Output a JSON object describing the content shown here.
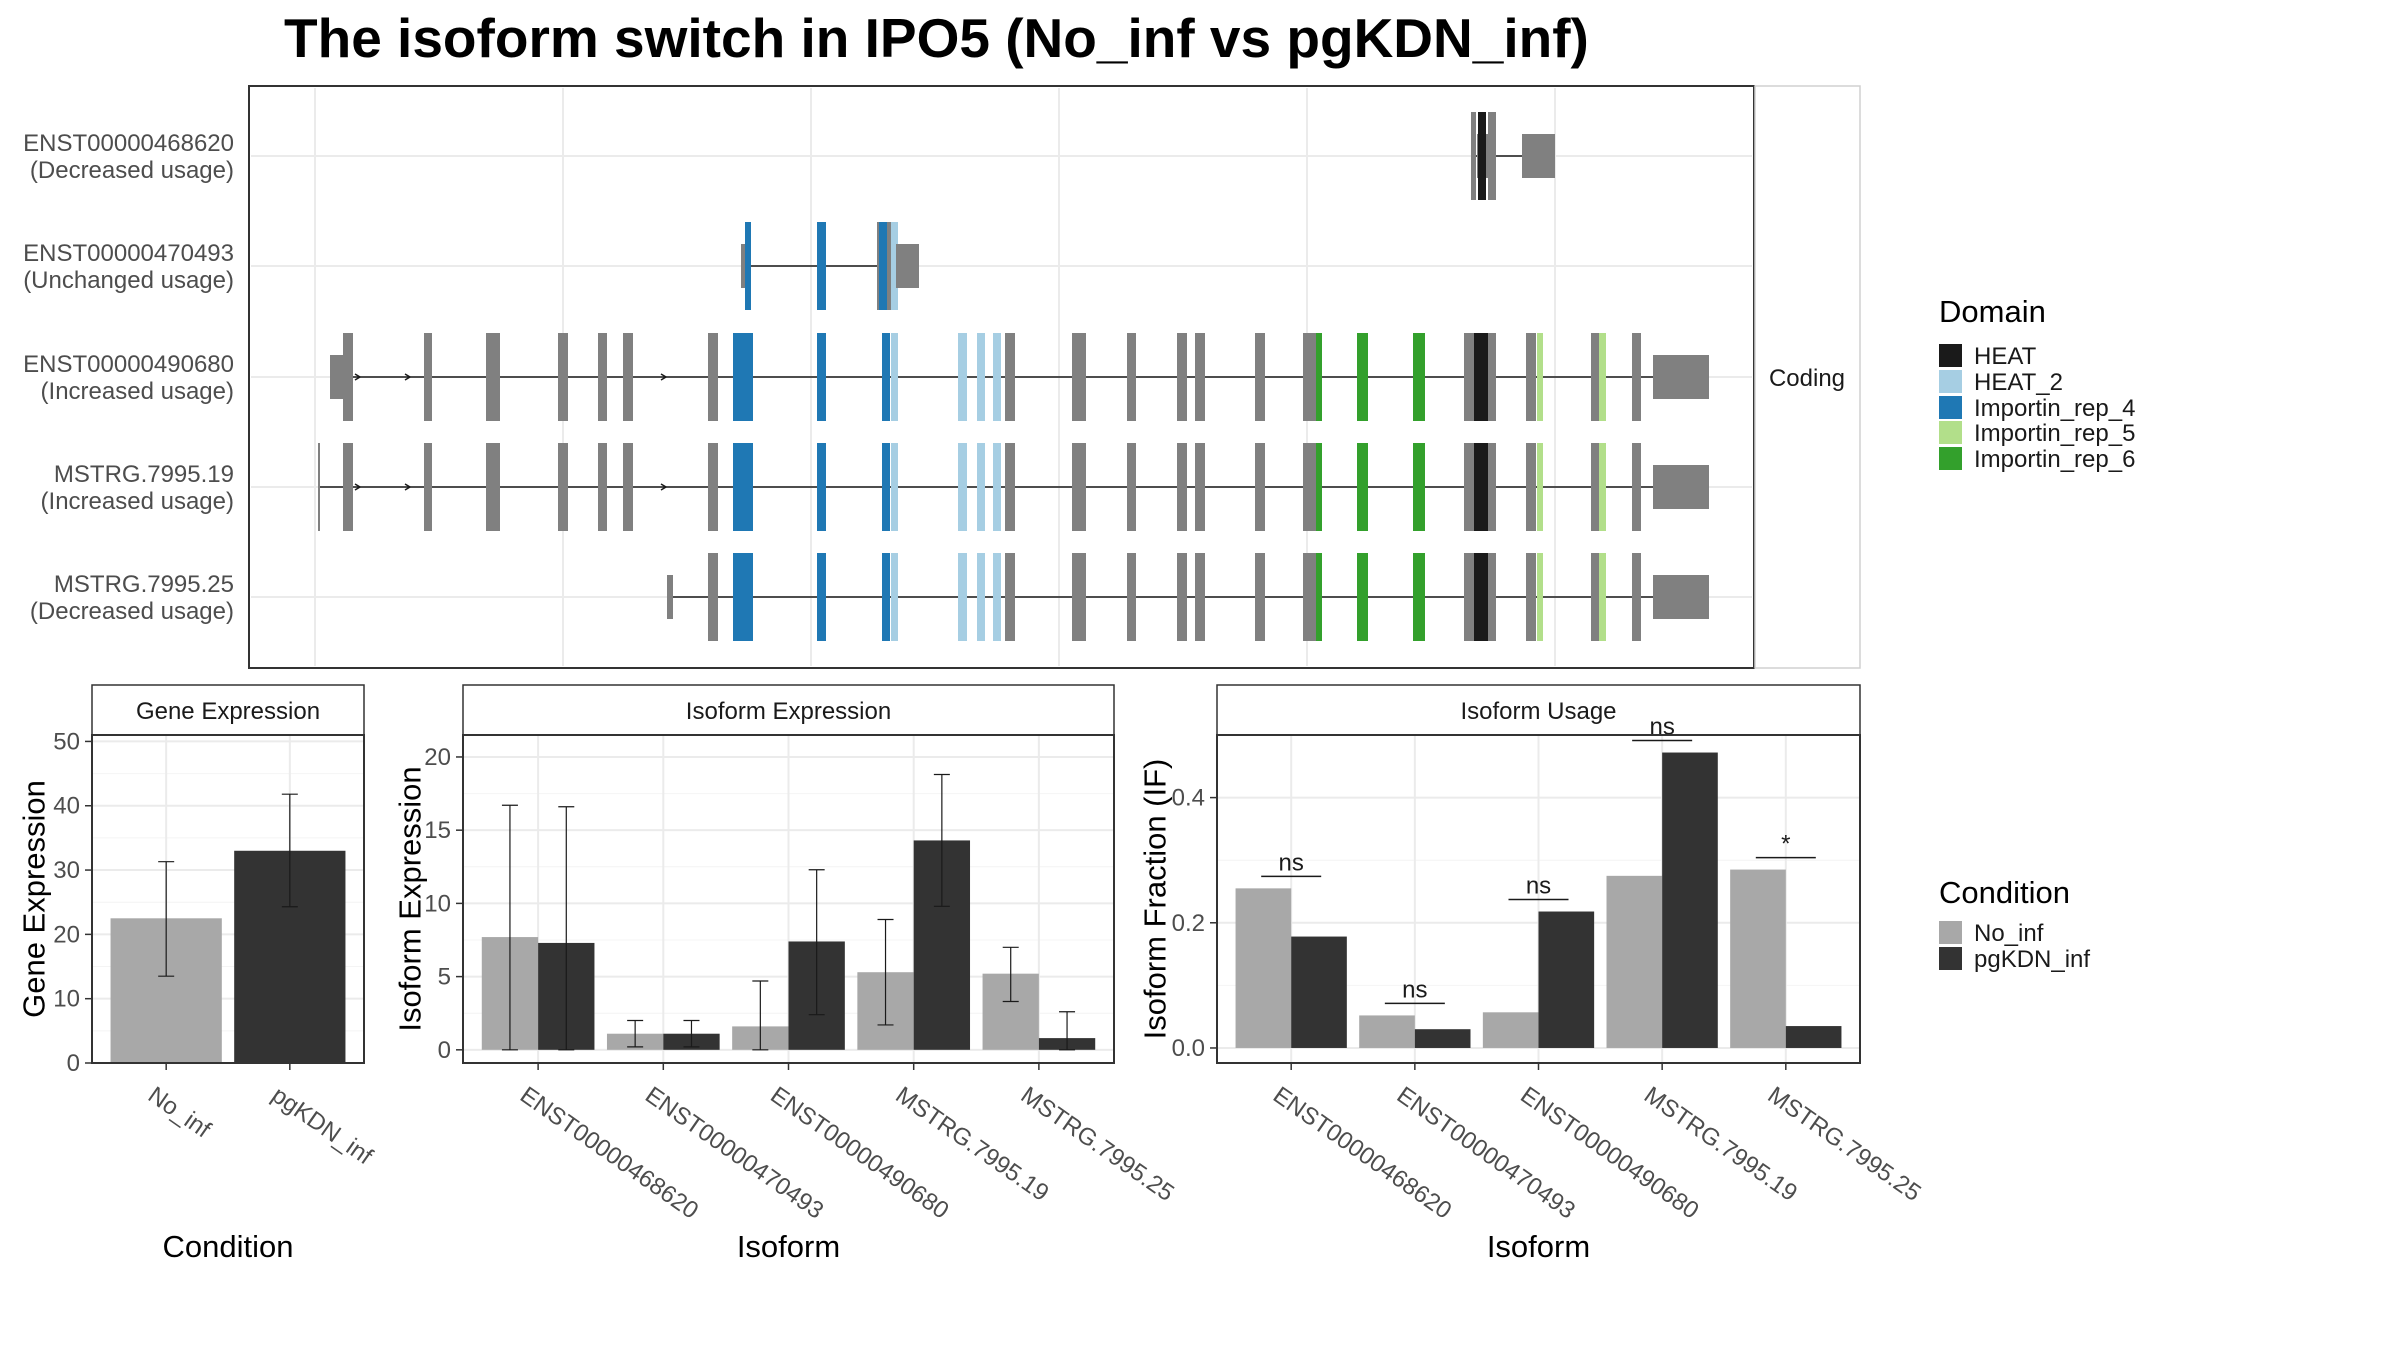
{
  "title": "The isoform switch in IPO5 (No_inf vs pgKDN_inf)",
  "structure": {
    "strip_label": "Coding",
    "isoforms": [
      {
        "id": "ENST00000468620",
        "usage": "(Decreased usage)"
      },
      {
        "id": "ENST00000470493",
        "usage": "(Unchanged usage)"
      },
      {
        "id": "ENST00000490680",
        "usage": "(Increased usage)"
      },
      {
        "id": "MSTRG.7995.19",
        "usage": "(Increased usage)"
      },
      {
        "id": "MSTRG.7995.25",
        "usage": "(Decreased usage)"
      }
    ]
  },
  "domain_legend": {
    "title": "Domain",
    "items": [
      {
        "label": "HEAT",
        "color": "#1a1a1a"
      },
      {
        "label": "HEAT_2",
        "color": "#a6cee3"
      },
      {
        "label": "Importin_rep_4",
        "color": "#1f78b4"
      },
      {
        "label": "Importin_rep_5",
        "color": "#b2df8a"
      },
      {
        "label": "Importin_rep_6",
        "color": "#33a02c"
      }
    ]
  },
  "condition_legend": {
    "title": "Condition",
    "items": [
      {
        "label": "No_inf",
        "color": "#a8a8a8"
      },
      {
        "label": "pgKDN_inf",
        "color": "#333333"
      }
    ]
  },
  "chart_data": [
    {
      "type": "bar",
      "strip": "Gene Expression",
      "xlabel": "Condition",
      "ylabel": "Gene Expression",
      "ylim": [
        0,
        51
      ],
      "yticks": [
        0,
        10,
        20,
        30,
        40,
        50
      ],
      "categories": [
        "No_inf",
        "pgKDN_inf"
      ],
      "values": [
        22.5,
        33.0
      ],
      "errors": [
        [
          13.5,
          31.3
        ],
        [
          24.3,
          41.8
        ]
      ]
    },
    {
      "type": "bar",
      "strip": "Isoform Expression",
      "xlabel": "Isoform",
      "ylabel": "Isoform Expression",
      "ylim": [
        -0.9,
        21.5
      ],
      "yticks": [
        0,
        5,
        10,
        15,
        20
      ],
      "categories": [
        "ENST00000468620",
        "ENST00000470493",
        "ENST00000490680",
        "MSTRG.7995.19",
        "MSTRG.7995.25"
      ],
      "series": [
        {
          "name": "No_inf",
          "values": [
            7.7,
            1.1,
            1.6,
            5.3,
            5.2
          ],
          "errors": [
            [
              0.0,
              16.7
            ],
            [
              0.2,
              2.0
            ],
            [
              0.0,
              4.7
            ],
            [
              1.7,
              8.9
            ],
            [
              3.3,
              7.0
            ]
          ]
        },
        {
          "name": "pgKDN_inf",
          "values": [
            7.3,
            1.1,
            7.4,
            14.3,
            0.8
          ],
          "errors": [
            [
              0.0,
              16.6
            ],
            [
              0.2,
              2.0
            ],
            [
              2.4,
              12.3
            ],
            [
              9.8,
              18.8
            ],
            [
              0.0,
              2.6
            ]
          ]
        }
      ]
    },
    {
      "type": "bar",
      "strip": "Isoform Usage",
      "xlabel": "Isoform",
      "ylabel": "Isoform Fraction (IF)",
      "ylim": [
        -0.024,
        0.5
      ],
      "yticks": [
        0.0,
        0.2,
        0.4
      ],
      "categories": [
        "ENST00000468620",
        "ENST00000470493",
        "ENST00000490680",
        "MSTRG.7995.19",
        "MSTRG.7995.25"
      ],
      "series": [
        {
          "name": "No_inf",
          "values": [
            0.255,
            0.052,
            0.057,
            0.275,
            0.285
          ]
        },
        {
          "name": "pgKDN_inf",
          "values": [
            0.178,
            0.03,
            0.218,
            0.472,
            0.035
          ]
        }
      ],
      "significance": [
        "ns",
        "ns",
        "ns",
        "ns",
        "*"
      ]
    }
  ]
}
